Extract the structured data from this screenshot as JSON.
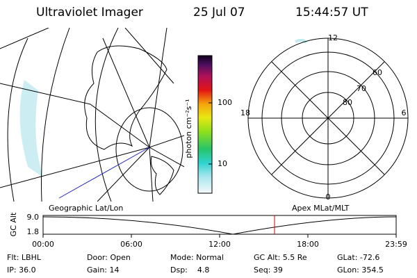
{
  "header": {
    "title": "Ultraviolet Imager",
    "date": "25 Jul 07",
    "time": "15:44:57 UT"
  },
  "colorbar": {
    "label": "photon cm⁻²s⁻¹",
    "ticks": [
      "100",
      "10"
    ]
  },
  "polar_plot": {
    "mlt_labels": [
      "12",
      "18",
      "6",
      "0"
    ],
    "lat_labels": [
      "60",
      "70",
      "80"
    ]
  },
  "panel_labels": {
    "left": "Geographic Lat/Lon",
    "right": "Apex MLat/MLT"
  },
  "timeline": {
    "y_label": "GC Alt",
    "y_ticks": [
      "9.0",
      "1.8"
    ],
    "x_ticks": [
      "00:00",
      "06:00",
      "12:00",
      "18:00",
      "23:59"
    ]
  },
  "footer": {
    "rows": [
      [
        "Flt: LBHL",
        "Door: Open",
        "Mode: Normal",
        "GC Alt: 5.5 Re",
        "GLat: -72.6"
      ],
      [
        "IP: 36.0",
        "Gain: 14",
        "Dsp:    4.8",
        "Seq: 39",
        "GLon: 354.5"
      ]
    ]
  }
}
